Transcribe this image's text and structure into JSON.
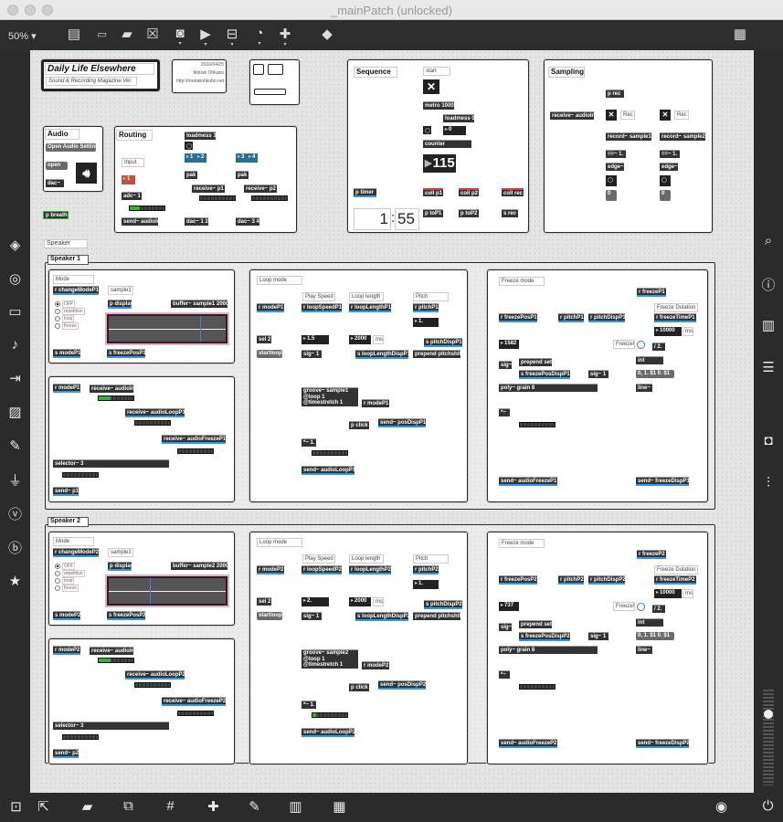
{
  "window": {
    "title": "_mainPatch (unlocked)"
  },
  "toolbar": {
    "zoom": "50%",
    "icons": [
      "presentation-icon",
      "message-icon",
      "comment-icon",
      "toggle-icon",
      "button-icon",
      "number-icon",
      "slider-icon",
      "dial-icon",
      "plus-icon",
      "paint-bucket-icon",
      "grid-icon"
    ]
  },
  "left_sidebar": {
    "icons": [
      "package-icon",
      "circle-icon",
      "bpatcher-icon",
      "music-note-icon",
      "sequence-icon",
      "image-icon",
      "paperclip-icon",
      "plug-icon",
      "vimeo-icon",
      "b-icon",
      "star-icon"
    ]
  },
  "right_sidebar": {
    "icons": [
      "search-icon",
      "info-icon",
      "book-icon",
      "list-icon",
      "camera-icon",
      "sliders-icon"
    ]
  },
  "bottom_bar": {
    "icons": [
      "lock-icon",
      "select-icon",
      "presentation-icon",
      "layers-icon",
      "grid-icon",
      "add-icon",
      "wrench-icon",
      "piano-icon",
      "keyboard-icon",
      "play-icon",
      "power-icon"
    ]
  },
  "patch": {
    "header": {
      "title": "Daily Life Elsewhere",
      "subtitle": "Sound & Recording Magazine Ver.",
      "date": "2016/04/25",
      "author": "Motoki Ohkubo",
      "url": "http://motokiohkubo.net"
    },
    "audio": {
      "label": "Audio",
      "open_setting": "Open Audio Setting",
      "open": "open",
      "dac": "dac~"
    },
    "p_breath": "p breath",
    "routing": {
      "label": "Routing",
      "loadmess": "loadmess 1",
      "input_label": "Input",
      "in_value": "1",
      "out1": "1",
      "out2": "2",
      "out3": "3",
      "out4": "4",
      "pak1": "pak",
      "pak2": "pak",
      "adc": "adc~ 1",
      "receive_p1": "receive~ p1",
      "receive_p2": "receive~ p2",
      "send_audioin": "send~ audioIn",
      "dac12": "dac~ 1 2",
      "dac34": "dac~ 3 4"
    },
    "sequence": {
      "label": "Sequence",
      "start_label": "start",
      "metro": "metro 1000",
      "loadmess": "loadmess 0",
      "init_value": "0",
      "counter": "counter",
      "count": "115",
      "p_timer": "p timer",
      "coll_p1": "coll p1",
      "coll_p2": "coll p2",
      "coll_rec": "coll rec",
      "p_top1": "p toP1",
      "p_top2": "p toP2",
      "s_rec": "s rec",
      "timer_min": "1",
      "timer_sep": ":",
      "timer_sec": "55"
    },
    "sampling": {
      "label": "Sampling",
      "p_rec": "p rec",
      "receive": "receive~ audioIn",
      "rec1": "Rec",
      "rec2": "Rec",
      "record1": "record~ sample1",
      "record2": "record~ sample2",
      "eq1": "==~ 1.",
      "eq2": "==~ 1.",
      "edge1": "edge~",
      "edge2": "edge~",
      "val1": "0",
      "val2": "0"
    },
    "speaker_label": "Speaker",
    "speakers": [
      {
        "title": "Speaker 1",
        "mode_label": "Mode",
        "r_change_mode": "r changeModeP1",
        "radio_options": [
          "OFF",
          "repetition",
          "loop",
          "freeze"
        ],
        "radio_selected": 0,
        "sample_label": "sample1",
        "p_display": "p display",
        "buffer": "buffer~ sample1 2000",
        "playhead": 0.78,
        "s_mode": "s modeP1",
        "s_freeze_pos": "s freezePosP1",
        "r_mode_sel": "r modeP1",
        "receive_audio_in": "receive~ audioIn",
        "receive_audio_loop": "receive~ audioLoopP1",
        "receive_audio_freeze": "receive~ audioFreezeP1",
        "selector": "selector~ 3",
        "send_out": "send~ p1",
        "loop_mode_label": "Loop mode",
        "play_speed_label": "Play Speed",
        "loop_length_label": "Loop length",
        "pitch_label": "Pitch",
        "r_mode_loop": "r modeP1",
        "r_loop_speed": "r loopSpeedP1",
        "r_loop_length": "r loopLengthP1",
        "r_pitch": "r pitchP1",
        "pitch_value": "1.",
        "sel": "sel 2",
        "speed_value": "1.5",
        "length_value": "2000",
        "ms_label": "ms",
        "s_pitch_disp": "s pitchDispP1",
        "startloop": "startloop",
        "sig": "sig~ 1",
        "s_loop_length_disp": "s loopLengthDispP1",
        "prepend_pitchshift": "prepend pitchshift",
        "groove": [
          "groove~ sample1",
          "@loop 1",
          "@timestretch 1"
        ],
        "r_mode_click": "r modeP1",
        "p_click": "p click",
        "send_pos_disp": "send~ posDispP1",
        "mul": "*~ 1.",
        "send_audio_loop": "send~ audioLoopP1",
        "freeze_mode_label": "Freeze mode",
        "r_freeze": "r freezeP1",
        "freeze_duration_label": "Freeze Dulation",
        "r_freeze_pos": "r freezePosP1",
        "r_pitch_f": "r pitchP1",
        "r_pitch_disp": "r pitchDispP1",
        "r_freeze_time": "r freezeTimeP1",
        "freeze_time_value": "10000",
        "ms_label2": "ms",
        "freeze_pos_value": "1582",
        "freeze_btn_label": "Freeze!",
        "div": "/ 2.",
        "prepend_set": "prepend set",
        "sig_f": "sig~",
        "int": "int",
        "s_freeze_pos_disp": "s freezePosDispP1",
        "sig_f1": "sig~ 1",
        "line_msg": "0, 1. $1 0. $1",
        "poly": "poly~ grain 8",
        "line": "line~",
        "mul_f": "*~",
        "send_audio_freeze": "send~ audioFreezeP1",
        "send_freeze_disp": "send~ freezeDispP1"
      },
      {
        "title": "Speaker 2",
        "mode_label": "Mode",
        "r_change_mode": "r changeModeP2",
        "radio_options": [
          "OFF",
          "repetition",
          "loop",
          "freeze"
        ],
        "radio_selected": 0,
        "sample_label": "sample1",
        "p_display": "p display",
        "buffer": "buffer~ sample2 2000",
        "playhead": 0.35,
        "s_mode": "s modeP2",
        "s_freeze_pos": "s freezePosP2",
        "r_mode_sel": "r modeP2",
        "receive_audio_in": "receive~ audioIn",
        "receive_audio_loop": "receive~ audioLoopP2",
        "receive_audio_freeze": "receive~ audioFreezeP2",
        "selector": "selector~ 3",
        "send_out": "send~ p2",
        "loop_mode_label": "Loop mode",
        "play_speed_label": "Play Speed",
        "loop_length_label": "Loop length",
        "pitch_label": "Pitch",
        "r_mode_loop": "r modeP2",
        "r_loop_speed": "r loopSpeedP2",
        "r_loop_length": "r loopLengthP2",
        "r_pitch": "r pitchP2",
        "pitch_value": "1.",
        "sel": "sel 2",
        "speed_value": "2.",
        "length_value": "2000",
        "ms_label": "ms",
        "s_pitch_disp": "s pitchDispP2",
        "startloop": "startloop",
        "sig": "sig~ 1",
        "s_loop_length_disp": "s loopLengthDispP2",
        "prepend_pitchshift": "prepend pitchshift",
        "groove": [
          "groove~ sample2",
          "@loop 1",
          "@timestretch 1"
        ],
        "r_mode_click": "r modeP2",
        "p_click": "p click",
        "send_pos_disp": "send~ posDispP2",
        "mul": "*~ 1.",
        "send_audio_loop": "send~ audioLoopP2",
        "freeze_mode_label": "Freeze mode",
        "r_freeze": "r freezeP2",
        "freeze_duration_label": "Freeze Dulation",
        "r_freeze_pos": "r freezePosP2",
        "r_pitch_f": "r pitchP2",
        "r_pitch_disp": "r pitchDispP2",
        "r_freeze_time": "r freezeTimeP2",
        "freeze_time_value": "10000",
        "ms_label2": "ms",
        "freeze_pos_value": "737",
        "freeze_btn_label": "Freeze!",
        "div": "/ 2.",
        "prepend_set": "prepend set",
        "sig_f": "sig~",
        "int": "int",
        "s_freeze_pos_disp": "s freezePosDispP2",
        "sig_f1": "sig~ 1",
        "line_msg": "0, 1. $1 0. $1",
        "poly": "poly~ grain 8",
        "line": "line~",
        "mul_f": "*~",
        "send_audio_freeze": "send~ audioFreezeP2",
        "send_freeze_disp": "send~ freezeDispP2"
      }
    ]
  },
  "colors": {
    "send_receive": "#2c9be8",
    "coll": "#e23a3a",
    "meter": "#33b233",
    "routing_in": "#c0503a",
    "routing_out": "#2a6f95"
  }
}
